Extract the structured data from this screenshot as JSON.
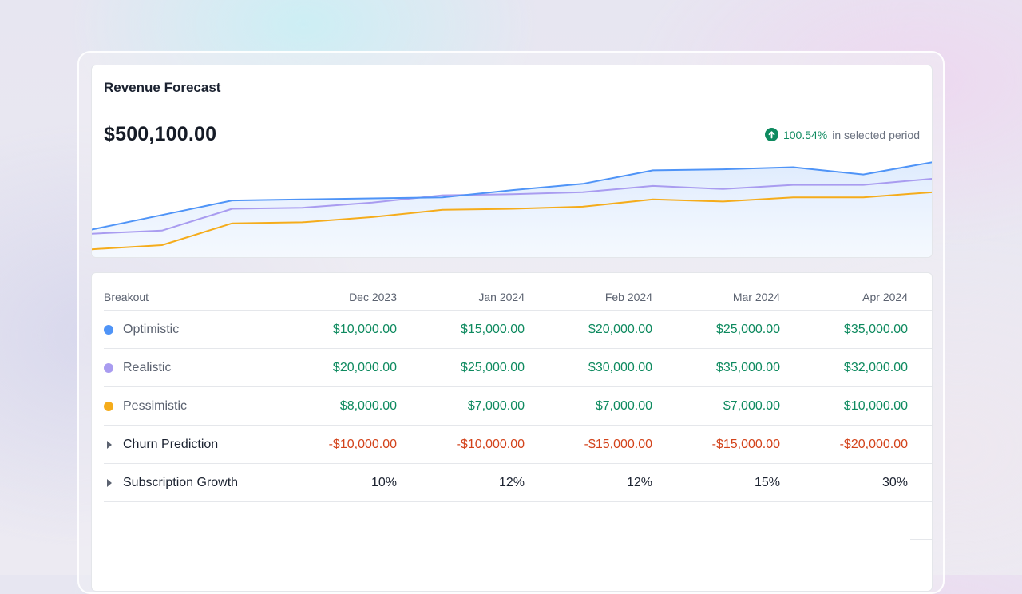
{
  "card": {
    "title": "Revenue Forecast",
    "total": "$500,100.00",
    "delta_pct": "100.54%",
    "delta_text": "in selected period"
  },
  "colors": {
    "optimistic": "#4f94f7",
    "realistic": "#a99cf0",
    "pessimistic": "#f5ac1b",
    "positive": "#0e8a5f",
    "negative": "#d3431b"
  },
  "chart_data": {
    "type": "line",
    "title": "",
    "xlabel": "",
    "ylabel": "",
    "grid": false,
    "area_fill_series": "Optimistic",
    "ylim": [
      0,
      100
    ],
    "series": [
      {
        "name": "Optimistic",
        "color": "#4f94f7",
        "values": [
          25,
          39,
          53,
          54,
          55,
          56,
          63,
          69,
          82,
          83,
          85,
          78,
          90
        ]
      },
      {
        "name": "Realistic",
        "color": "#a99cf0",
        "values": [
          21,
          24,
          45,
          46,
          51,
          58,
          59,
          61,
          67,
          64,
          68,
          68,
          74
        ]
      },
      {
        "name": "Pessimistic",
        "color": "#f5ac1b",
        "values": [
          6,
          10,
          31,
          32,
          37,
          44,
          45,
          47,
          54,
          52,
          56,
          56,
          61
        ]
      }
    ]
  },
  "table": {
    "header": {
      "label": "Breakout",
      "months": [
        "Dec 2023",
        "Jan 2024",
        "Feb 2024",
        "Mar 2024",
        "Apr 2024"
      ]
    },
    "rows": [
      {
        "label": "Optimistic",
        "marker": "dot",
        "color": "#4f94f7",
        "tone": "pos",
        "values": [
          "$10,000.00",
          "$15,000.00",
          "$20,000.00",
          "$25,000.00",
          "$35,000.00"
        ]
      },
      {
        "label": "Realistic",
        "marker": "dot",
        "color": "#a99cf0",
        "tone": "pos",
        "values": [
          "$20,000.00",
          "$25,000.00",
          "$30,000.00",
          "$35,000.00",
          "$32,000.00"
        ]
      },
      {
        "label": "Pessimistic",
        "marker": "dot",
        "color": "#f5ac1b",
        "tone": "pos",
        "values": [
          "$8,000.00",
          "$7,000.00",
          "$7,000.00",
          "$7,000.00",
          "$10,000.00"
        ]
      },
      {
        "label": "Churn Prediction",
        "marker": "caret",
        "tone": "neg",
        "values": [
          "-$10,000.00",
          "-$10,000.00",
          "-$15,000.00",
          "-$15,000.00",
          "-$20,000.00"
        ]
      },
      {
        "label": "Subscription Growth",
        "marker": "caret",
        "tone": "plain",
        "values": [
          "10%",
          "12%",
          "12%",
          "15%",
          "30%"
        ]
      }
    ]
  }
}
